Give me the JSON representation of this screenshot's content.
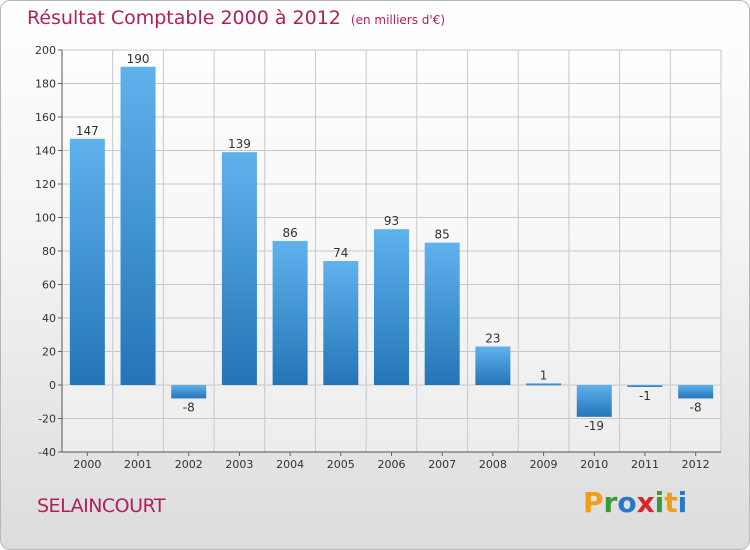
{
  "title": "Résultat Comptable 2000 à 2012",
  "unit": "(en milliers d'€)",
  "commune": "SELAINCOURT",
  "brand": {
    "letters": [
      "P",
      "r",
      "o",
      "x",
      "i",
      "t",
      "i"
    ],
    "colors": [
      "#f39c1a",
      "#3a9a3a",
      "#2a79c8",
      "#d8262e",
      "#3a9a3a",
      "#f39c1a",
      "#2a79c8"
    ]
  },
  "colors": {
    "bar_top": "#5fb2ec",
    "bar_bottom": "#2375b8",
    "grid": "#c8c8c8",
    "axis_text": "#333333"
  },
  "chart_data": {
    "type": "bar",
    "title": "Résultat Comptable 2000 à 2012",
    "xlabel": "",
    "ylabel": "(en milliers d'€)",
    "categories": [
      "2000",
      "2001",
      "2002",
      "2003",
      "2004",
      "2005",
      "2006",
      "2007",
      "2008",
      "2009",
      "2010",
      "2011",
      "2012"
    ],
    "values": [
      147,
      190,
      -8,
      139,
      86,
      74,
      93,
      85,
      23,
      1,
      -19,
      -1,
      -8
    ],
    "labels": [
      "147",
      "190",
      "-8",
      "139",
      "86",
      "74",
      "93",
      "85",
      "23",
      "1",
      "-19",
      "-1",
      "-8"
    ],
    "ylim": [
      -40,
      200
    ],
    "yticks": [
      -40,
      -20,
      0,
      20,
      40,
      60,
      80,
      100,
      120,
      140,
      160,
      180,
      200
    ],
    "grid": true
  }
}
